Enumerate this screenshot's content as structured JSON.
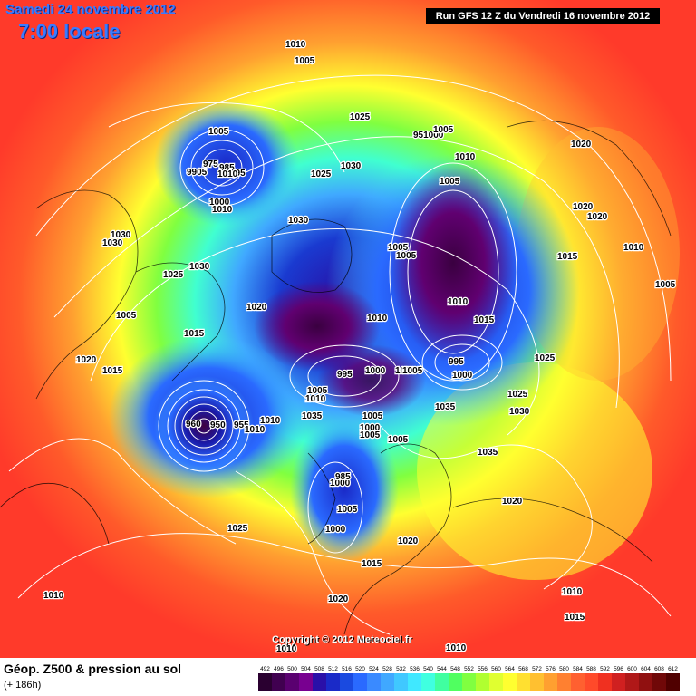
{
  "header": {
    "date": "Samedi 24 novembre 2012",
    "local_time": "7:00 locale",
    "run_info": "Run GFS 12 Z du Vendredi 16 novembre 2012"
  },
  "footer": {
    "title": "Géop. Z500 & pression au sol",
    "subtitle": "(+ 186h)",
    "copyright": "Copyright © 2012 Meteociel.fr"
  },
  "colors": {
    "background": "#ff3a2a",
    "palette": [
      "#3a0040",
      "#5a0060",
      "#880088",
      "#2a0aa0",
      "#1a3ad0",
      "#2a6aff",
      "#40a8ff",
      "#40e0ff",
      "#40ffd0",
      "#40ff80",
      "#80ff40",
      "#c0ff30",
      "#ffff30",
      "#ffd030",
      "#ffa030",
      "#ff7030",
      "#ff3a2a"
    ]
  },
  "scale": {
    "labels": [
      "492",
      "496",
      "500",
      "504",
      "508",
      "512",
      "516",
      "520",
      "524",
      "528",
      "532",
      "536",
      "540",
      "544",
      "548",
      "552",
      "556",
      "560",
      "564",
      "568",
      "572",
      "576",
      "580",
      "584",
      "588",
      "592",
      "596",
      "600",
      "604",
      "608",
      "612"
    ],
    "colors": [
      "#2a0030",
      "#400050",
      "#5a0070",
      "#780090",
      "#2a10a8",
      "#1a2ac8",
      "#1a4ae0",
      "#2a6aff",
      "#3a8aff",
      "#40a8ff",
      "#40c8ff",
      "#40e8ff",
      "#40ffe0",
      "#40ffa0",
      "#50ff60",
      "#80ff40",
      "#b0ff30",
      "#e0ff30",
      "#ffff30",
      "#ffe030",
      "#ffc030",
      "#ffa030",
      "#ff8030",
      "#ff6030",
      "#ff4a2a",
      "#f03020",
      "#d02020",
      "#b01818",
      "#901010",
      "#700808",
      "#500000"
    ]
  },
  "pressure_labels": [
    "1010",
    "1005",
    "1005",
    "975",
    "985",
    "9905",
    "995",
    "1000",
    "1010",
    "1025",
    "1030",
    "1030",
    "1025",
    "951000",
    "1005",
    "1010",
    "1005",
    "1020",
    "1020",
    "1020",
    "1030",
    "1030",
    "1025",
    "1030",
    "1010",
    "1005",
    "1015",
    "1020",
    "1025",
    "1005",
    "1015",
    "1010",
    "1010",
    "1005",
    "1020",
    "1015",
    "1015",
    "1010",
    "1005",
    "995",
    "1000",
    "1035",
    "1025",
    "1030",
    "1035",
    "960",
    "950",
    "955",
    "1010",
    "1010",
    "1035",
    "1000",
    "1005",
    "1000",
    "1005",
    "1005",
    "985",
    "1000",
    "1005",
    "1000",
    "1020",
    "1020",
    "1015",
    "1025",
    "1010",
    "1010",
    "1015",
    "1010",
    "1010",
    "1020",
    "1010",
    "1005",
    "995",
    "1005",
    "1000"
  ]
}
